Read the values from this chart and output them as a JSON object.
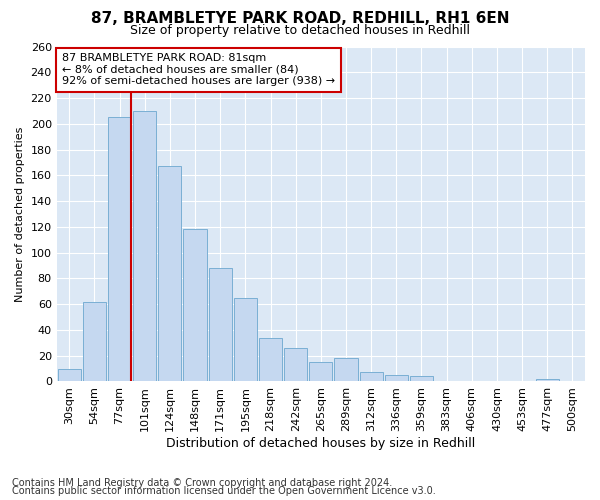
{
  "title1": "87, BRAMBLETYE PARK ROAD, REDHILL, RH1 6EN",
  "title2": "Size of property relative to detached houses in Redhill",
  "xlabel": "Distribution of detached houses by size in Redhill",
  "ylabel": "Number of detached properties",
  "bins": [
    "30sqm",
    "54sqm",
    "77sqm",
    "101sqm",
    "124sqm",
    "148sqm",
    "171sqm",
    "195sqm",
    "218sqm",
    "242sqm",
    "265sqm",
    "289sqm",
    "312sqm",
    "336sqm",
    "359sqm",
    "383sqm",
    "406sqm",
    "430sqm",
    "453sqm",
    "477sqm",
    "500sqm"
  ],
  "values": [
    10,
    62,
    205,
    210,
    167,
    118,
    88,
    65,
    34,
    26,
    15,
    18,
    7,
    5,
    4,
    0,
    0,
    0,
    0,
    2,
    0
  ],
  "bar_color": "#c5d8f0",
  "bar_edge_color": "#7aafd4",
  "highlight_bar_index": 2,
  "highlight_line_color": "#cc0000",
  "annotation_line1": "87 BRAMBLETYE PARK ROAD: 81sqm",
  "annotation_line2": "← 8% of detached houses are smaller (84)",
  "annotation_line3": "92% of semi-detached houses are larger (938) →",
  "annotation_box_color": "#ffffff",
  "annotation_box_edge": "#cc0000",
  "ylim": [
    0,
    260
  ],
  "yticks": [
    0,
    20,
    40,
    60,
    80,
    100,
    120,
    140,
    160,
    180,
    200,
    220,
    240,
    260
  ],
  "footer1": "Contains HM Land Registry data © Crown copyright and database right 2024.",
  "footer2": "Contains public sector information licensed under the Open Government Licence v3.0.",
  "plot_bg_color": "#dce8f5",
  "fig_bg_color": "#ffffff",
  "grid_color": "#ffffff",
  "title1_fontsize": 11,
  "title2_fontsize": 9,
  "xlabel_fontsize": 9,
  "ylabel_fontsize": 8,
  "tick_fontsize": 8,
  "footer_fontsize": 7,
  "annot_fontsize": 8
}
